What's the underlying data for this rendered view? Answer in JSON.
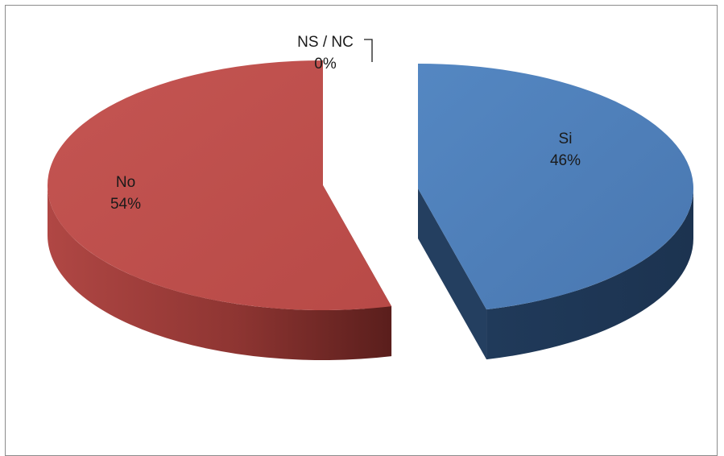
{
  "chart_data": {
    "type": "pie",
    "style": "3d-exploded",
    "slices": [
      {
        "label": "Si",
        "value": 46,
        "value_label": "46%",
        "color": "#4f81bd",
        "side_color": "#243f60"
      },
      {
        "label": "No",
        "value": 54,
        "value_label": "54%",
        "color": "#c0504d",
        "side_color": "#7a2a28"
      },
      {
        "label": "NS / NC",
        "value": 0,
        "value_label": "0%",
        "color": "#9bbb59",
        "side_color": "#5f7530"
      }
    ],
    "legend": "none"
  }
}
